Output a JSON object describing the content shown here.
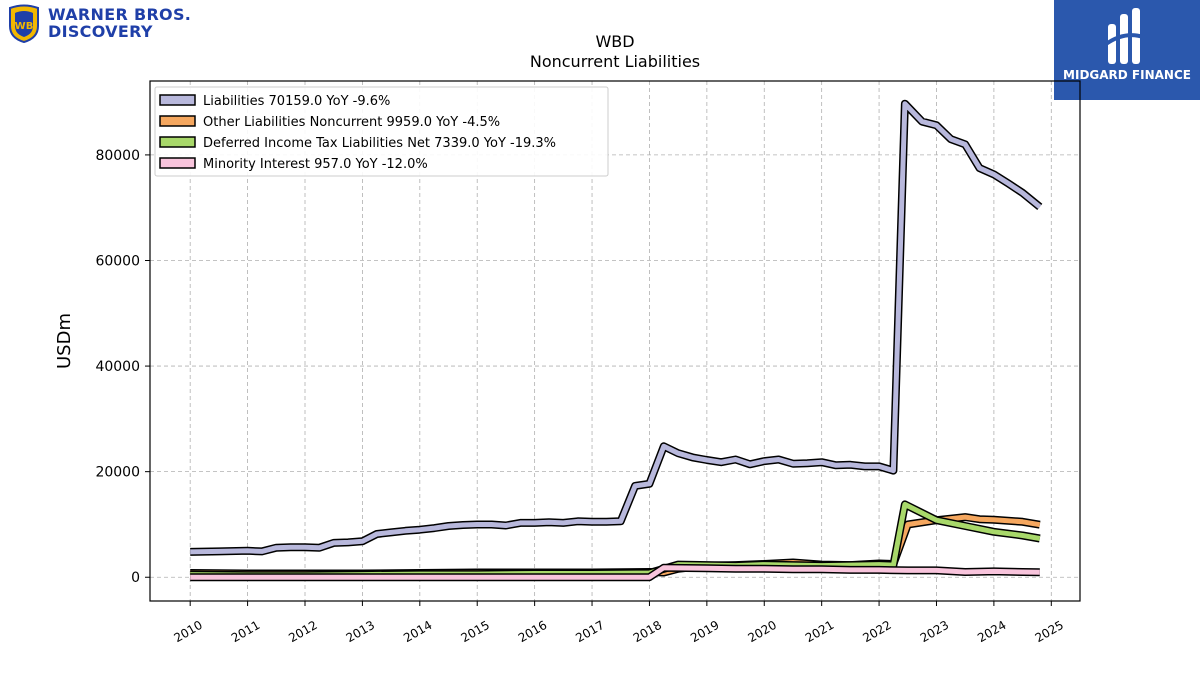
{
  "brand": {
    "company_line1": "WARNER BROS.",
    "company_line2": "DISCOVERY",
    "finance_name": "MIDGARD FINANCE"
  },
  "chart_data": {
    "type": "line",
    "title": "WBD",
    "subtitle": "Noncurrent  Liabilities",
    "ylabel": "USDm",
    "ylim": [
      -4500,
      94000
    ],
    "xlim": [
      2009.3,
      2025.5
    ],
    "yticks": [
      0,
      20000,
      40000,
      60000,
      80000
    ],
    "yticklabels": [
      "0",
      "20000",
      "40000",
      "60000",
      "80000"
    ],
    "xticks": [
      2010,
      2011,
      2012,
      2013,
      2014,
      2015,
      2016,
      2017,
      2018,
      2019,
      2020,
      2021,
      2022,
      2023,
      2024,
      2025
    ],
    "xticklabels": [
      "2010",
      "2011",
      "2012",
      "2013",
      "2014",
      "2015",
      "2016",
      "2017",
      "2018",
      "2019",
      "2020",
      "2021",
      "2022",
      "2023",
      "2024",
      "2025"
    ],
    "grid": true,
    "legend_position": "top-left",
    "series": [
      {
        "name": "Liabilities  70159.0 YoY -9.6%",
        "color": "#b8b8dc",
        "points": [
          [
            2010.0,
            4800
          ],
          [
            2010.5,
            4900
          ],
          [
            2011.0,
            5000
          ],
          [
            2011.25,
            4900
          ],
          [
            2011.5,
            5600
          ],
          [
            2011.75,
            5700
          ],
          [
            2012.0,
            5700
          ],
          [
            2012.25,
            5600
          ],
          [
            2012.5,
            6500
          ],
          [
            2012.75,
            6600
          ],
          [
            2013.0,
            6800
          ],
          [
            2013.25,
            8200
          ],
          [
            2013.5,
            8500
          ],
          [
            2013.75,
            8800
          ],
          [
            2014.0,
            9000
          ],
          [
            2014.25,
            9300
          ],
          [
            2014.5,
            9700
          ],
          [
            2014.75,
            9900
          ],
          [
            2015.0,
            10000
          ],
          [
            2015.25,
            10000
          ],
          [
            2015.5,
            9800
          ],
          [
            2015.75,
            10300
          ],
          [
            2016.0,
            10300
          ],
          [
            2016.25,
            10400
          ],
          [
            2016.5,
            10300
          ],
          [
            2016.75,
            10600
          ],
          [
            2017.0,
            10500
          ],
          [
            2017.25,
            10500
          ],
          [
            2017.5,
            10600
          ],
          [
            2017.75,
            17300
          ],
          [
            2018.0,
            17700
          ],
          [
            2018.25,
            24800
          ],
          [
            2018.5,
            23500
          ],
          [
            2018.75,
            22700
          ],
          [
            2019.0,
            22200
          ],
          [
            2019.25,
            21800
          ],
          [
            2019.5,
            22300
          ],
          [
            2019.75,
            21400
          ],
          [
            2020.0,
            22000
          ],
          [
            2020.25,
            22300
          ],
          [
            2020.5,
            21500
          ],
          [
            2020.75,
            21600
          ],
          [
            2021.0,
            21800
          ],
          [
            2021.25,
            21200
          ],
          [
            2021.5,
            21300
          ],
          [
            2021.75,
            21000
          ],
          [
            2022.0,
            21000
          ],
          [
            2022.25,
            20200
          ],
          [
            2022.45,
            89700
          ],
          [
            2022.75,
            86300
          ],
          [
            2023.0,
            85600
          ],
          [
            2023.25,
            83000
          ],
          [
            2023.5,
            82000
          ],
          [
            2023.75,
            77500
          ],
          [
            2024.0,
            76300
          ],
          [
            2024.25,
            74600
          ],
          [
            2024.5,
            72800
          ],
          [
            2024.8,
            70159
          ]
        ]
      },
      {
        "name": "Other Liabilities Noncurrent  9959.0 YoY -4.5%",
        "color": "#f5a75f",
        "points": [
          [
            2010.0,
            800
          ],
          [
            2011.0,
            700
          ],
          [
            2012.0,
            700
          ],
          [
            2013.0,
            700
          ],
          [
            2014.0,
            800
          ],
          [
            2015.0,
            900
          ],
          [
            2016.0,
            900
          ],
          [
            2017.0,
            900
          ],
          [
            2018.0,
            1000
          ],
          [
            2018.25,
            900
          ],
          [
            2018.5,
            1600
          ],
          [
            2019.0,
            2200
          ],
          [
            2019.5,
            2300
          ],
          [
            2020.0,
            2500
          ],
          [
            2020.5,
            2800
          ],
          [
            2021.0,
            2400
          ],
          [
            2021.5,
            2300
          ],
          [
            2022.0,
            2600
          ],
          [
            2022.25,
            2500
          ],
          [
            2022.5,
            10000
          ],
          [
            2023.0,
            10800
          ],
          [
            2023.5,
            11400
          ],
          [
            2023.75,
            11000
          ],
          [
            2024.0,
            10900
          ],
          [
            2024.5,
            10500
          ],
          [
            2024.8,
            9959
          ]
        ]
      },
      {
        "name": "Deferred Income Tax Liabilities Net  7339.0 YoY -19.3%",
        "color": "#a8d86a",
        "points": [
          [
            2010.0,
            500
          ],
          [
            2011.0,
            400
          ],
          [
            2012.0,
            400
          ],
          [
            2013.0,
            500
          ],
          [
            2014.0,
            600
          ],
          [
            2015.0,
            600
          ],
          [
            2016.0,
            700
          ],
          [
            2017.0,
            700
          ],
          [
            2018.0,
            800
          ],
          [
            2018.5,
            2400
          ],
          [
            2019.0,
            2300
          ],
          [
            2019.5,
            2200
          ],
          [
            2020.0,
            2400
          ],
          [
            2020.5,
            2300
          ],
          [
            2021.0,
            2200
          ],
          [
            2021.5,
            2300
          ],
          [
            2022.0,
            2400
          ],
          [
            2022.25,
            2300
          ],
          [
            2022.45,
            13800
          ],
          [
            2023.0,
            10800
          ],
          [
            2023.5,
            9700
          ],
          [
            2024.0,
            8600
          ],
          [
            2024.5,
            7900
          ],
          [
            2024.8,
            7339
          ]
        ]
      },
      {
        "name": "Minority Interest  957.0 YoY -12.0%",
        "color": "#f8c4dc",
        "points": [
          [
            2010.0,
            0
          ],
          [
            2011.0,
            0
          ],
          [
            2012.0,
            0
          ],
          [
            2013.0,
            0
          ],
          [
            2014.0,
            0
          ],
          [
            2015.0,
            0
          ],
          [
            2016.0,
            0
          ],
          [
            2017.0,
            0
          ],
          [
            2018.0,
            0
          ],
          [
            2018.25,
            1800
          ],
          [
            2019.0,
            1700
          ],
          [
            2019.5,
            1600
          ],
          [
            2020.0,
            1600
          ],
          [
            2020.5,
            1500
          ],
          [
            2021.0,
            1500
          ],
          [
            2021.5,
            1400
          ],
          [
            2022.0,
            1400
          ],
          [
            2022.5,
            1300
          ],
          [
            2023.0,
            1300
          ],
          [
            2023.5,
            1000
          ],
          [
            2024.0,
            1100
          ],
          [
            2024.5,
            1000
          ],
          [
            2024.8,
            957
          ]
        ]
      }
    ]
  }
}
